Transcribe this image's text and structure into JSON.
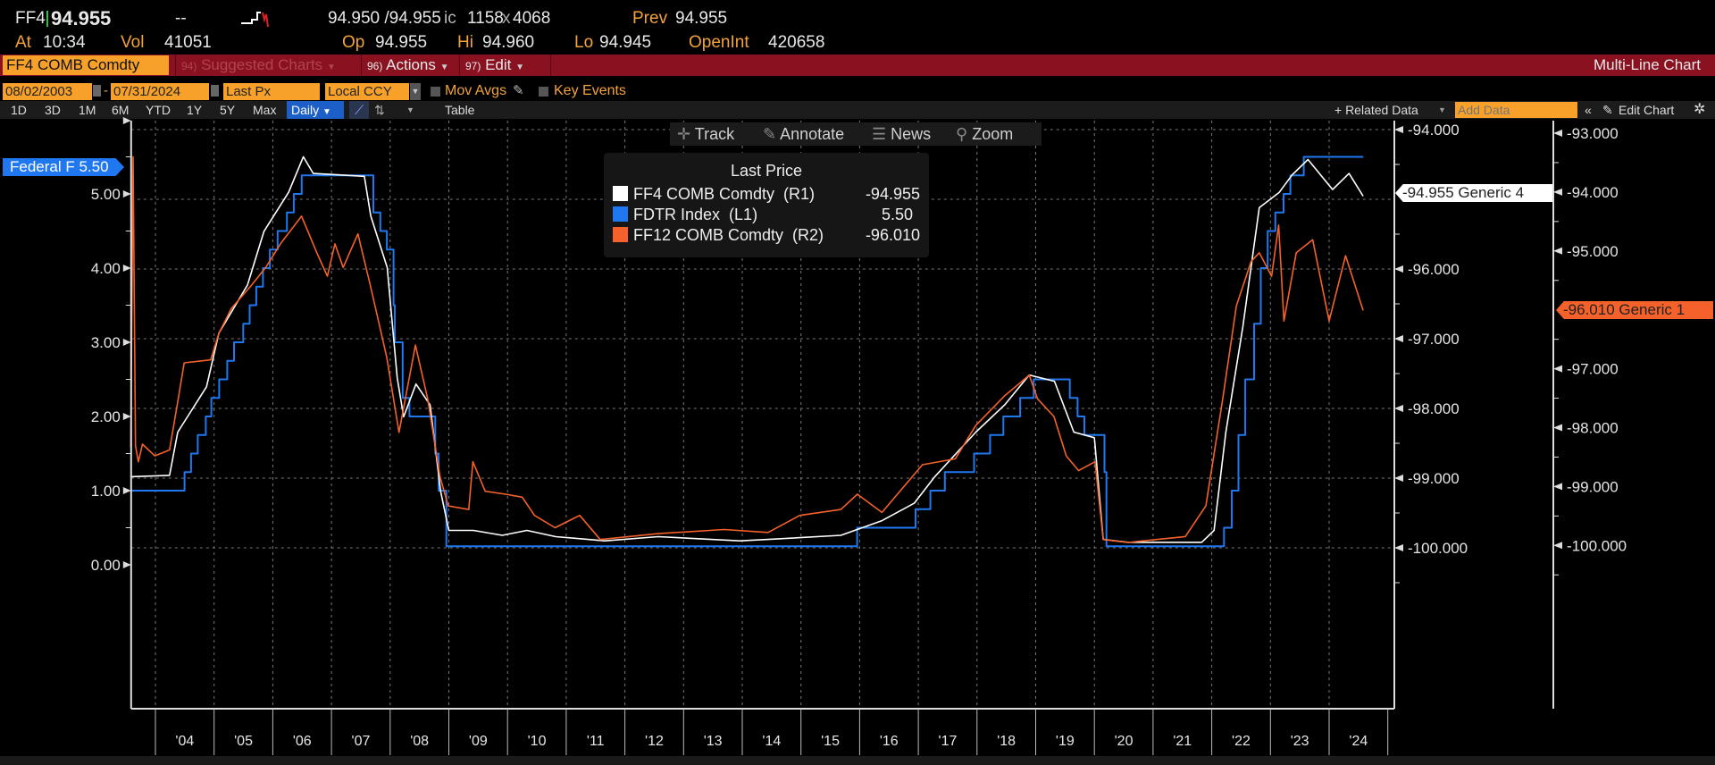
{
  "quote": {
    "ticker": "FF4",
    "last": "94.955",
    "change": "--",
    "bid_ask": "94.950 /94.955",
    "bid_ask_suffix": "ic",
    "size": "1158",
    "size_sep": "x",
    "size2": "4068",
    "prev_label": "Prev",
    "prev": "94.955",
    "at_label": "At",
    "at": "10:34",
    "vol_label": "Vol",
    "vol": "41051",
    "op_label": "Op",
    "op": "94.955",
    "hi_label": "Hi",
    "hi": "94.960",
    "lo_label": "Lo",
    "lo": "94.945",
    "oi_label": "OpenInt",
    "oi": "420658"
  },
  "redbar": {
    "security": "FF4 COMB Comdty",
    "suggested_num": "94)",
    "suggested": "Suggested Charts",
    "actions_num": "96)",
    "actions": "Actions",
    "edit_num": "97)",
    "edit": "Edit",
    "title": "Multi-Line Chart"
  },
  "controls": {
    "start_date": "08/02/2003",
    "date_sep": "-",
    "end_date": "07/31/2024",
    "field": "Last Px",
    "currency": "Local CCY",
    "mov_avgs": "Mov Avgs",
    "key_events": "Key Events"
  },
  "ranges": [
    "1D",
    "3D",
    "1M",
    "6M",
    "YTD",
    "1Y",
    "5Y",
    "Max"
  ],
  "toolbar": {
    "period": "Daily",
    "table": "Table",
    "related": "+ Related Data",
    "add_data_placeholder": "Add Data",
    "edit_chart": "Edit Chart"
  },
  "chart_tools": {
    "track": "Track",
    "annotate": "Annotate",
    "news": "News",
    "zoom": "Zoom"
  },
  "legend": {
    "title": "Last Price",
    "items": [
      {
        "name": "FF4 COMB Comdty",
        "axis": "(R1)",
        "value": "-94.955",
        "color": "#ffffff"
      },
      {
        "name": "FDTR Index",
        "axis": "(L1)",
        "value": "5.50",
        "color": "#1f78f0"
      },
      {
        "name": "FF12 COMB Comdty",
        "axis": "(R2)",
        "value": "-96.010",
        "color": "#f4612a"
      }
    ]
  },
  "tags": {
    "left": "Federal F 5.50",
    "r1": "-94.955 Generic 4",
    "r2": "-96.010 Generic 1"
  },
  "chart_data": {
    "type": "line",
    "x_range": [
      "2003-08-02",
      "2024-07-31"
    ],
    "x_ticks": [
      "'04",
      "'05",
      "'06",
      "'07",
      "'08",
      "'09",
      "'10",
      "'11",
      "'12",
      "'13",
      "'14",
      "'15",
      "'16",
      "'17",
      "'18",
      "'19",
      "'20",
      "'21",
      "'22",
      "'23",
      "'24"
    ],
    "axes": {
      "L1": {
        "ticks": [
          "0.00",
          "1.00",
          "2.00",
          "3.00",
          "4.00",
          "5.00"
        ]
      },
      "R1": {
        "ticks": [
          "-94.000",
          "-96.000",
          "-97.000",
          "-98.000",
          "-99.000",
          "-100.000"
        ]
      },
      "R2": {
        "ticks": [
          "-93.000",
          "-94.000",
          "-95.000",
          "-97.000",
          "-98.000",
          "-99.000",
          "-100.000"
        ]
      }
    },
    "grid": true,
    "legend_position": "top-center",
    "series": [
      {
        "name": "FDTR Index",
        "axis": "L1",
        "color": "#1f78f0",
        "step": true,
        "points": [
          [
            "2003-08-02",
            1.0
          ],
          [
            "2004-06-30",
            1.25
          ],
          [
            "2004-08-10",
            1.5
          ],
          [
            "2004-09-21",
            1.75
          ],
          [
            "2004-11-10",
            2.0
          ],
          [
            "2004-12-14",
            2.25
          ],
          [
            "2005-02-02",
            2.5
          ],
          [
            "2005-03-22",
            2.75
          ],
          [
            "2005-05-03",
            3.0
          ],
          [
            "2005-06-30",
            3.25
          ],
          [
            "2005-08-09",
            3.5
          ],
          [
            "2005-09-20",
            3.75
          ],
          [
            "2005-11-01",
            4.0
          ],
          [
            "2005-12-13",
            4.25
          ],
          [
            "2006-01-31",
            4.5
          ],
          [
            "2006-03-28",
            4.75
          ],
          [
            "2006-05-10",
            5.0
          ],
          [
            "2006-06-29",
            5.25
          ],
          [
            "2007-09-18",
            4.75
          ],
          [
            "2007-10-31",
            4.5
          ],
          [
            "2007-12-11",
            4.25
          ],
          [
            "2008-01-22",
            3.5
          ],
          [
            "2008-01-30",
            3.0
          ],
          [
            "2008-03-18",
            2.25
          ],
          [
            "2008-04-30",
            2.0
          ],
          [
            "2008-10-08",
            1.5
          ],
          [
            "2008-10-29",
            1.0
          ],
          [
            "2008-12-16",
            0.25
          ],
          [
            "2015-12-16",
            0.5
          ],
          [
            "2016-12-14",
            0.75
          ],
          [
            "2017-03-15",
            1.0
          ],
          [
            "2017-06-14",
            1.25
          ],
          [
            "2017-12-13",
            1.5
          ],
          [
            "2018-03-21",
            1.75
          ],
          [
            "2018-06-13",
            2.0
          ],
          [
            "2018-09-26",
            2.25
          ],
          [
            "2018-12-19",
            2.5
          ],
          [
            "2019-07-31",
            2.25
          ],
          [
            "2019-09-18",
            2.0
          ],
          [
            "2019-10-30",
            1.75
          ],
          [
            "2020-03-03",
            1.25
          ],
          [
            "2020-03-15",
            0.25
          ],
          [
            "2022-03-16",
            0.5
          ],
          [
            "2022-05-04",
            1.0
          ],
          [
            "2022-06-15",
            1.75
          ],
          [
            "2022-07-27",
            2.5
          ],
          [
            "2022-09-21",
            3.25
          ],
          [
            "2022-11-02",
            4.0
          ],
          [
            "2022-12-14",
            4.5
          ],
          [
            "2023-02-01",
            4.75
          ],
          [
            "2023-03-22",
            5.0
          ],
          [
            "2023-05-03",
            5.25
          ],
          [
            "2023-07-26",
            5.5
          ],
          [
            "2024-07-31",
            5.5
          ]
        ]
      },
      {
        "name": "FF4 COMB Comdty",
        "axis": "R1",
        "color": "#ffffff",
        "points": [
          [
            2003.58,
            -98.98
          ],
          [
            2004.24,
            -98.96
          ],
          [
            2004.38,
            -98.34
          ],
          [
            2004.87,
            -97.69
          ],
          [
            2005.08,
            -96.92
          ],
          [
            2005.57,
            -96.23
          ],
          [
            2005.85,
            -95.46
          ],
          [
            2006.27,
            -94.9
          ],
          [
            2006.52,
            -94.39
          ],
          [
            2006.69,
            -94.63
          ],
          [
            2007.56,
            -94.67
          ],
          [
            2007.67,
            -95.24
          ],
          [
            2007.95,
            -95.98
          ],
          [
            2008.12,
            -97.56
          ],
          [
            2008.23,
            -98.12
          ],
          [
            2008.44,
            -97.65
          ],
          [
            2008.68,
            -97.95
          ],
          [
            2008.86,
            -99.19
          ],
          [
            2009.0,
            -99.75
          ],
          [
            2009.42,
            -99.75
          ],
          [
            2009.91,
            -99.82
          ],
          [
            2010.33,
            -99.75
          ],
          [
            2010.82,
            -99.84
          ],
          [
            2011.66,
            -99.9
          ],
          [
            2012.57,
            -99.84
          ],
          [
            2013.96,
            -99.9
          ],
          [
            2014.44,
            -99.88
          ],
          [
            2015.68,
            -99.82
          ],
          [
            2016.38,
            -99.61
          ],
          [
            2016.93,
            -99.36
          ],
          [
            2017.28,
            -98.98
          ],
          [
            2017.98,
            -98.34
          ],
          [
            2018.47,
            -97.95
          ],
          [
            2018.89,
            -97.52
          ],
          [
            2019.32,
            -97.61
          ],
          [
            2019.65,
            -98.34
          ],
          [
            2020.0,
            -98.42
          ],
          [
            2020.15,
            -99.88
          ],
          [
            2020.57,
            -99.92
          ],
          [
            2021.83,
            -99.92
          ],
          [
            2022.04,
            -99.75
          ],
          [
            2022.24,
            -98.34
          ],
          [
            2022.53,
            -96.83
          ],
          [
            2022.81,
            -95.12
          ],
          [
            2023.15,
            -94.9
          ],
          [
            2023.37,
            -94.65
          ],
          [
            2023.64,
            -94.43
          ],
          [
            2024.06,
            -94.86
          ],
          [
            2024.34,
            -94.63
          ],
          [
            2024.58,
            -94.955
          ]
        ]
      },
      {
        "name": "FF12 COMB Comdty",
        "axis": "R2",
        "color": "#f4612a",
        "points": [
          [
            2003.58,
            -98.33
          ],
          [
            2003.62,
            -93.4
          ],
          [
            2003.66,
            -98.31
          ],
          [
            2003.71,
            -98.58
          ],
          [
            2003.78,
            -98.28
          ],
          [
            2003.99,
            -98.48
          ],
          [
            2004.24,
            -98.38
          ],
          [
            2004.38,
            -97.56
          ],
          [
            2004.49,
            -96.9
          ],
          [
            2004.94,
            -96.85
          ],
          [
            2005.08,
            -96.4
          ],
          [
            2005.29,
            -95.98
          ],
          [
            2005.64,
            -95.58
          ],
          [
            2005.88,
            -95.28
          ],
          [
            2006.13,
            -94.88
          ],
          [
            2006.49,
            -94.41
          ],
          [
            2006.75,
            -95.03
          ],
          [
            2006.93,
            -95.43
          ],
          [
            2007.06,
            -94.88
          ],
          [
            2007.2,
            -95.28
          ],
          [
            2007.45,
            -94.71
          ],
          [
            2007.66,
            -95.58
          ],
          [
            2007.94,
            -96.8
          ],
          [
            2008.15,
            -98.08
          ],
          [
            2008.43,
            -96.6
          ],
          [
            2008.64,
            -97.51
          ],
          [
            2008.85,
            -98.83
          ],
          [
            2008.99,
            -99.33
          ],
          [
            2009.34,
            -99.39
          ],
          [
            2009.41,
            -98.58
          ],
          [
            2009.62,
            -99.08
          ],
          [
            2009.97,
            -99.13
          ],
          [
            2010.25,
            -99.18
          ],
          [
            2010.46,
            -99.49
          ],
          [
            2010.81,
            -99.7
          ],
          [
            2011.23,
            -99.49
          ],
          [
            2011.58,
            -99.9
          ],
          [
            2012.57,
            -99.8
          ],
          [
            2013.69,
            -99.73
          ],
          [
            2014.44,
            -99.78
          ],
          [
            2014.98,
            -99.49
          ],
          [
            2015.68,
            -99.39
          ],
          [
            2015.96,
            -99.13
          ],
          [
            2016.38,
            -99.44
          ],
          [
            2017.07,
            -98.63
          ],
          [
            2017.63,
            -98.53
          ],
          [
            2017.98,
            -97.96
          ],
          [
            2018.47,
            -97.46
          ],
          [
            2018.89,
            -97.11
          ],
          [
            2019.03,
            -97.51
          ],
          [
            2019.31,
            -97.81
          ],
          [
            2019.52,
            -98.48
          ],
          [
            2019.73,
            -98.73
          ],
          [
            2020.01,
            -98.58
          ],
          [
            2020.15,
            -99.9
          ],
          [
            2020.57,
            -99.95
          ],
          [
            2021.55,
            -99.85
          ],
          [
            2021.9,
            -99.33
          ],
          [
            2022.18,
            -97.56
          ],
          [
            2022.42,
            -95.93
          ],
          [
            2022.67,
            -95.18
          ],
          [
            2022.81,
            -95.03
          ],
          [
            2023.02,
            -95.43
          ],
          [
            2023.14,
            -94.56
          ],
          [
            2023.23,
            -96.19
          ],
          [
            2023.44,
            -95.03
          ],
          [
            2023.72,
            -94.81
          ],
          [
            2024.0,
            -96.19
          ],
          [
            2024.28,
            -95.08
          ],
          [
            2024.58,
            -96.01
          ]
        ]
      }
    ]
  }
}
